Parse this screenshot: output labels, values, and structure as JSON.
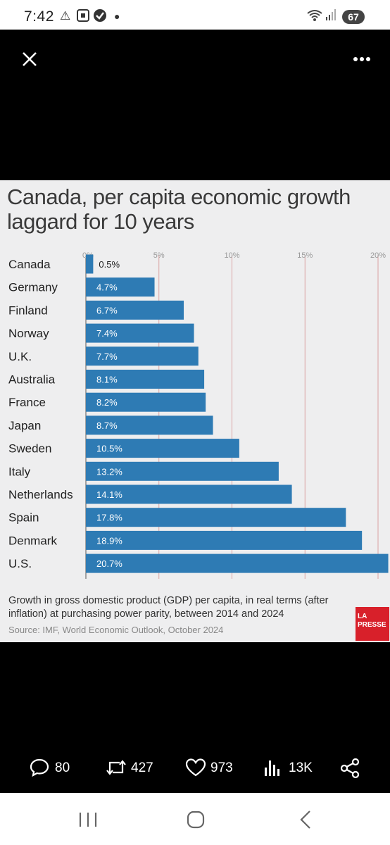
{
  "status": {
    "time": "7:42",
    "icons": [
      "warning-icon",
      "screenshot-icon",
      "check-circle-icon",
      "dot-icon",
      "wifi-icon",
      "signal-icon"
    ],
    "battery": "67"
  },
  "viewer": {
    "close_icon": "close-icon",
    "more_icon": "more-dots-icon"
  },
  "chart_data": {
    "type": "bar",
    "title": "Canada, per capita economic growth laggard for 10 years",
    "categories": [
      "Canada",
      "Germany",
      "Finland",
      "Norway",
      "U.K.",
      "Australia",
      "France",
      "Japan",
      "Sweden",
      "Italy",
      "Netherlands",
      "Spain",
      "Denmark",
      "U.S."
    ],
    "values": [
      0.5,
      4.7,
      6.7,
      7.4,
      7.7,
      8.1,
      8.2,
      8.7,
      10.5,
      13.2,
      14.1,
      17.8,
      18.9,
      20.7
    ],
    "value_labels": [
      "0.5%",
      "4.7%",
      "6.7%",
      "7.4%",
      "7.7%",
      "8.1%",
      "8.2%",
      "8.7%",
      "10.5%",
      "13.2%",
      "14.1%",
      "17.8%",
      "18.9%",
      "20.7%"
    ],
    "ticks": [
      0,
      5,
      10,
      15,
      20
    ],
    "tick_labels": [
      "0%",
      "5%",
      "10%",
      "15%",
      "20%"
    ],
    "xlim": [
      0,
      21
    ],
    "orientation": "horizontal",
    "grid": true,
    "bar_color": "#2e7bb4",
    "footer": "Growth in gross domestic product (GDP) per capita, in real terms (after inflation) at purchasing power parity, between 2014 and 2024",
    "source": "Source: IMF, World Economic Outlook, October 2024",
    "logo_text": [
      "LA",
      "PRESSE"
    ]
  },
  "actions": [
    {
      "icon": "reply-icon",
      "count": "80"
    },
    {
      "icon": "repost-icon",
      "count": "427"
    },
    {
      "icon": "heart-icon",
      "count": "973"
    },
    {
      "icon": "views-icon",
      "count": "13K"
    },
    {
      "icon": "share-icon",
      "count": ""
    }
  ],
  "navbar": {
    "items": [
      "recents-icon",
      "home-icon",
      "back-icon"
    ]
  },
  "colors": {
    "background": "#000000",
    "image_bg": "#eeeeef",
    "bar": "#2e7bb4",
    "logo": "#d8202a"
  }
}
